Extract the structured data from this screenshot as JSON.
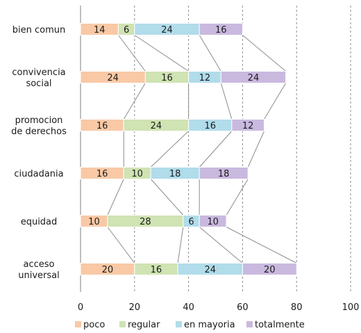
{
  "chart_data": {
    "type": "bar",
    "stacked": true,
    "orientation": "horizontal",
    "categories": [
      "bien comun",
      "convivencia social",
      "promocion de derechos",
      "ciudadania",
      "equidad",
      "acceso universal"
    ],
    "category_lines": [
      [
        "bien comun"
      ],
      [
        "convivencia",
        "social"
      ],
      [
        "promocion",
        "de derechos"
      ],
      [
        "ciudadania"
      ],
      [
        "equidad"
      ],
      [
        "acceso",
        "universal"
      ]
    ],
    "series": [
      {
        "name": "poco",
        "color": "#f9c9a6",
        "values": [
          14,
          24,
          16,
          16,
          10,
          20
        ]
      },
      {
        "name": "regular",
        "color": "#cfe3b3",
        "values": [
          6,
          16,
          24,
          10,
          28,
          16
        ]
      },
      {
        "name": "en mayoria",
        "color": "#b1dcea",
        "values": [
          24,
          12,
          16,
          18,
          6,
          24
        ]
      },
      {
        "name": "totalmente",
        "color": "#c9b9df",
        "values": [
          16,
          24,
          12,
          18,
          10,
          20
        ]
      }
    ],
    "xlim": [
      0,
      100
    ],
    "xticks": [
      0,
      20,
      40,
      60,
      80,
      100
    ],
    "grid": "vertical-dashed",
    "series_lines": true,
    "legend": "bottom"
  }
}
